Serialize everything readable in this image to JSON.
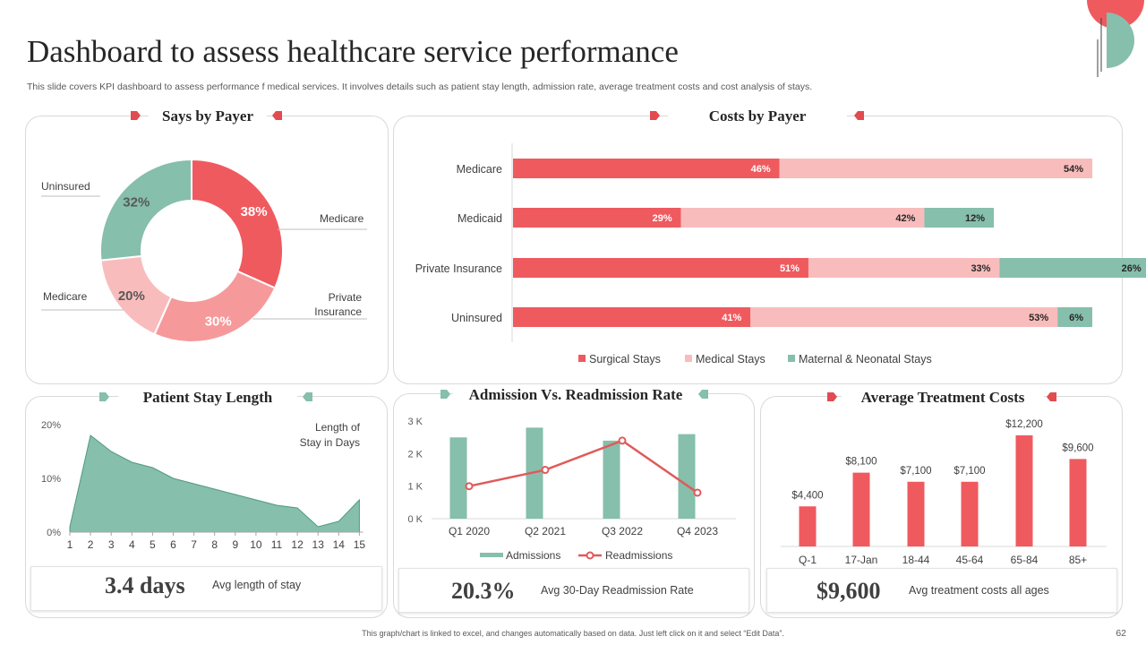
{
  "header": {
    "title": "Dashboard to assess healthcare service performance",
    "subtitle": "This slide covers KPI dashboard to assess performance f medical services. It involves details such as patient stay length, admission rate, average treatment costs and  cost analysis of stays."
  },
  "colors": {
    "red": "#ef5a5f",
    "pink": "#f9bcbc",
    "lightred": "#f6999b",
    "teal": "#86bfab",
    "accent": "#e24b50"
  },
  "footer": {
    "note": "This graph/chart is linked to excel, and changes automatically based on data. Just left click on it and select “Edit Data”.",
    "page": "62"
  },
  "chart_data": [
    {
      "id": "says_by_payer",
      "type": "pie",
      "title": "Says by Payer",
      "slices": [
        {
          "name": "Medicare",
          "value": 38,
          "label": "38%"
        },
        {
          "name": "Private Insurance",
          "value": 30,
          "label": "30%"
        },
        {
          "name": "Medicare",
          "value": 20,
          "label": "20%"
        },
        {
          "name": "Uninsured",
          "value": 32,
          "label": "32%"
        }
      ],
      "callouts": [
        "Uninsured",
        "Medicare",
        "Medicare",
        "Private\nInsurance"
      ]
    },
    {
      "id": "costs_by_payer",
      "type": "bar",
      "orientation": "horizontal",
      "stacked": true,
      "title": "Costs by Payer",
      "categories": [
        "Medicare",
        "Medicaid",
        "Private Insurance",
        "Uninsured"
      ],
      "series": [
        {
          "name": "Surgical Stays",
          "values": [
            46,
            29,
            51,
            41
          ]
        },
        {
          "name": "Medical Stays",
          "values": [
            54,
            42,
            33,
            53
          ]
        },
        {
          "name": "Maternal & Neonatal Stays",
          "values": [
            0,
            12,
            26,
            6
          ]
        }
      ],
      "legend": "bottom"
    },
    {
      "id": "patient_stay_length",
      "type": "area",
      "title": "Patient Stay Length",
      "series_label": "Length of\nStay in Days",
      "x": [
        1,
        2,
        3,
        4,
        5,
        6,
        7,
        8,
        9,
        10,
        11,
        12,
        13,
        14,
        15
      ],
      "values": [
        1,
        18,
        15,
        13,
        12,
        10,
        9,
        8,
        7,
        6,
        5,
        4.5,
        1,
        2,
        6
      ],
      "yticks": [
        "0%",
        "10%",
        "20%"
      ],
      "ylim": [
        0,
        20
      ]
    },
    {
      "id": "admission_vs_readmission",
      "type": "bar",
      "title": "Admission Vs. Readmission Rate",
      "categories": [
        "Q1 2020",
        "Q2 2021",
        "Q3 2022",
        "Q4 2023"
      ],
      "series": [
        {
          "name": "Admissions",
          "type": "bar",
          "values": [
            2500,
            2800,
            2400,
            2600
          ]
        },
        {
          "name": "Readmissions",
          "type": "line",
          "values": [
            1000,
            1500,
            2400,
            800
          ]
        }
      ],
      "yticks": [
        "0 K",
        "1 K",
        "2 K",
        "3 K"
      ],
      "ylim": [
        0,
        3000
      ],
      "legend": "bottom"
    },
    {
      "id": "average_treatment_costs",
      "type": "bar",
      "title": "Average Treatment Costs",
      "categories": [
        "Q-1",
        "17-Jan",
        "18-44",
        "45-64",
        "65-84",
        "85+"
      ],
      "values": [
        4400,
        8100,
        7100,
        7100,
        12200,
        9600
      ],
      "labels": [
        "$4,400",
        "$8,100",
        "$7,100",
        "$7,100",
        "$12,200",
        "$9,600"
      ]
    }
  ],
  "kpis": {
    "stay": {
      "value": "3.4 days",
      "label": "Avg length of stay"
    },
    "readmission": {
      "value": "20.3%",
      "label": "Avg 30-Day  Readmission Rate"
    },
    "cost": {
      "value": "$9,600",
      "label": "Avg treatment costs all ages"
    }
  }
}
